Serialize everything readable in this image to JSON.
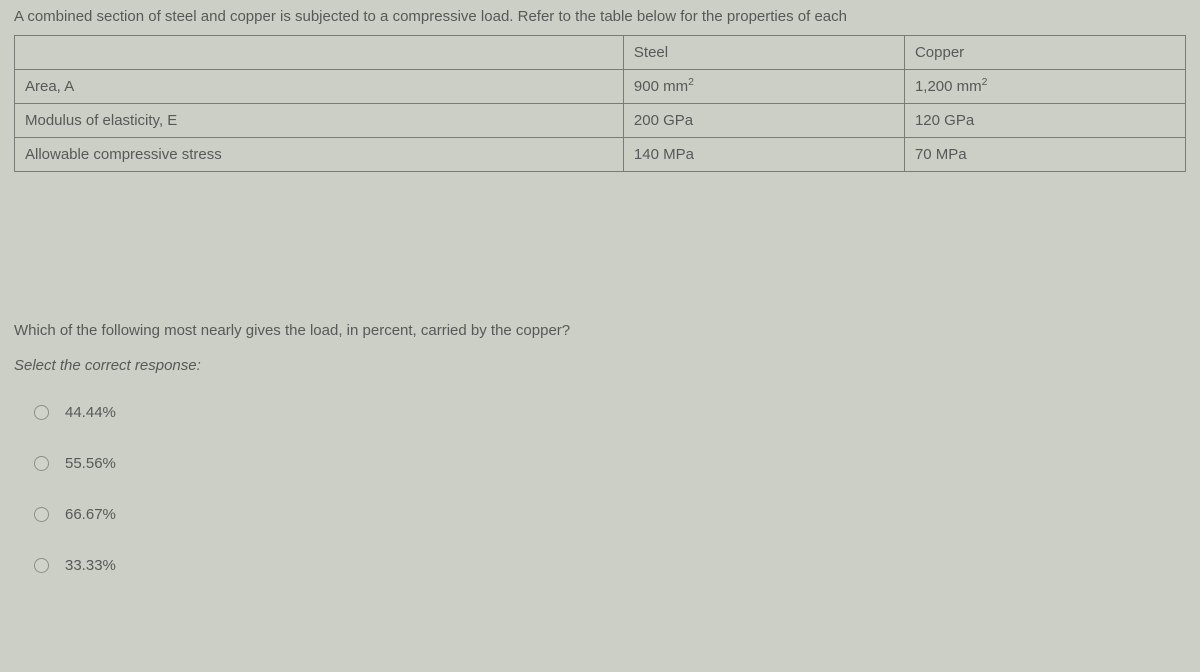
{
  "intro": "A combined section of steel and copper is subjected to a compressive load. Refer to the table below for the properties of each",
  "table": {
    "headers": {
      "blank": "",
      "steel": "Steel",
      "copper": "Copper"
    },
    "rows": [
      {
        "label": "Area, A",
        "steel": "900 mm",
        "steel_sup": "2",
        "copper": "1,200 mm",
        "copper_sup": "2"
      },
      {
        "label": "Modulus of elasticity, E",
        "steel": "200 GPa",
        "steel_sup": "",
        "copper": "120 GPa",
        "copper_sup": ""
      },
      {
        "label": "Allowable compressive stress",
        "steel": "140 MPa",
        "steel_sup": "",
        "copper": "70 MPa",
        "copper_sup": ""
      }
    ]
  },
  "question": "Which of the following most nearly gives the load, in percent, carried by the copper?",
  "prompt": "Select the correct response:",
  "options": [
    "44.44%",
    "55.56%",
    "66.67%",
    "33.33%"
  ]
}
